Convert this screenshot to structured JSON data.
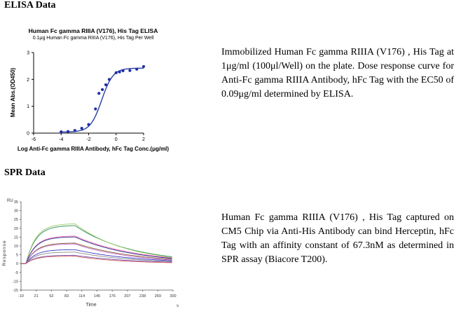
{
  "elisa": {
    "heading": "ELISA Data",
    "chart_title": "Human Fc gamma RIIIA (V176), His Tag ELISA",
    "chart_subtitle": "0.1μg  Human Fc gamma RIIIA (V176), His Tag Per Well",
    "description": "Immobilized Human Fc gamma RIIIA (V176) , His Tag at 1μg/ml (100μl/Well) on the plate. Dose response curve for Anti-Fc gamma RIIIA Antibody, hFc Tag with the EC50 of 0.09μg/ml determined by ELISA."
  },
  "spr": {
    "heading": "SPR Data",
    "description": "Human Fc gamma RIIIA (V176) , His Tag captured on CM5 Chip via Anti-His Antibody can bind Herceptin, hFc Tag with an affinity constant of 67.3nM as determined in SPR assay (Biacore T200)."
  },
  "chart_data": [
    {
      "type": "scatter",
      "title": "Human Fc gamma RIIIA (V176), His Tag ELISA",
      "subtitle": "0.1μg  Human Fc gamma RIIIA (V176), His Tag Per Well",
      "xlabel": "Log Anti-Fc gamma RIIIA Antibody, hFc Tag Conc.(μg/ml)",
      "ylabel": "Mean Abs.(OD450)",
      "xlim": [
        -6,
        2
      ],
      "ylim": [
        0,
        3
      ],
      "x_ticks": [
        "-6",
        "-4",
        "-2",
        "0",
        "2"
      ],
      "y_ticks": [
        "0",
        "1",
        "2",
        "3"
      ],
      "fit": "sigmoidal",
      "fit_color": "#2b3f9e",
      "point_color": "#1f2fa8",
      "points": {
        "x": [
          -4.0,
          -3.5,
          -3.0,
          -2.5,
          -2.0,
          -1.5,
          -1.25,
          -1.0,
          -0.75,
          -0.5,
          0.0,
          0.25,
          0.5,
          1.0,
          1.5,
          2.0
        ],
        "y": [
          0.05,
          0.06,
          0.1,
          0.18,
          0.32,
          0.9,
          1.48,
          1.62,
          1.8,
          2.0,
          2.25,
          2.28,
          2.32,
          2.33,
          2.38,
          2.48
        ]
      },
      "grid": false,
      "legend": "none"
    },
    {
      "type": "line",
      "xlabel": "Time",
      "x_unit": "s",
      "ylabel": "Response",
      "y_unit": "RU",
      "xlim": [
        -10,
        300
      ],
      "ylim": [
        -15,
        35
      ],
      "x_ticks": [
        "-10",
        "21",
        "52",
        "83",
        "114",
        "145",
        "176",
        "207",
        "238",
        "269",
        "300"
      ],
      "y_ticks": [
        "35",
        "30",
        "25",
        "20",
        "15",
        "10",
        "5",
        "0",
        "-5",
        "-10",
        "-15"
      ],
      "injection_start": 0,
      "injection_end": 100,
      "series": [
        {
          "color": "#2e8b57",
          "max_response": 21.5,
          "end_response": 3.8
        },
        {
          "color": "#9acd66",
          "max_response": 22.5,
          "end_response": 3.5
        },
        {
          "color": "#ff6fae",
          "max_response": 15.6,
          "end_response": 3.2
        },
        {
          "color": "#1e2a8c",
          "max_response": 15.1,
          "end_response": 2.9
        },
        {
          "color": "#8a5a2b",
          "max_response": 11.6,
          "end_response": 2.4
        },
        {
          "color": "#c06ad0",
          "max_response": 11.1,
          "end_response": 2.0
        },
        {
          "color": "#3a3ac8",
          "max_response": 7.9,
          "end_response": 1.6
        },
        {
          "color": "#8a8a8a",
          "max_response": 6.5,
          "end_response": 1.2
        },
        {
          "color": "#7a4fb0",
          "max_response": 4.7,
          "end_response": 0.8
        },
        {
          "color": "#d26060",
          "max_response": 4.2,
          "end_response": 0.5
        }
      ],
      "grid": false,
      "legend": "none"
    }
  ]
}
